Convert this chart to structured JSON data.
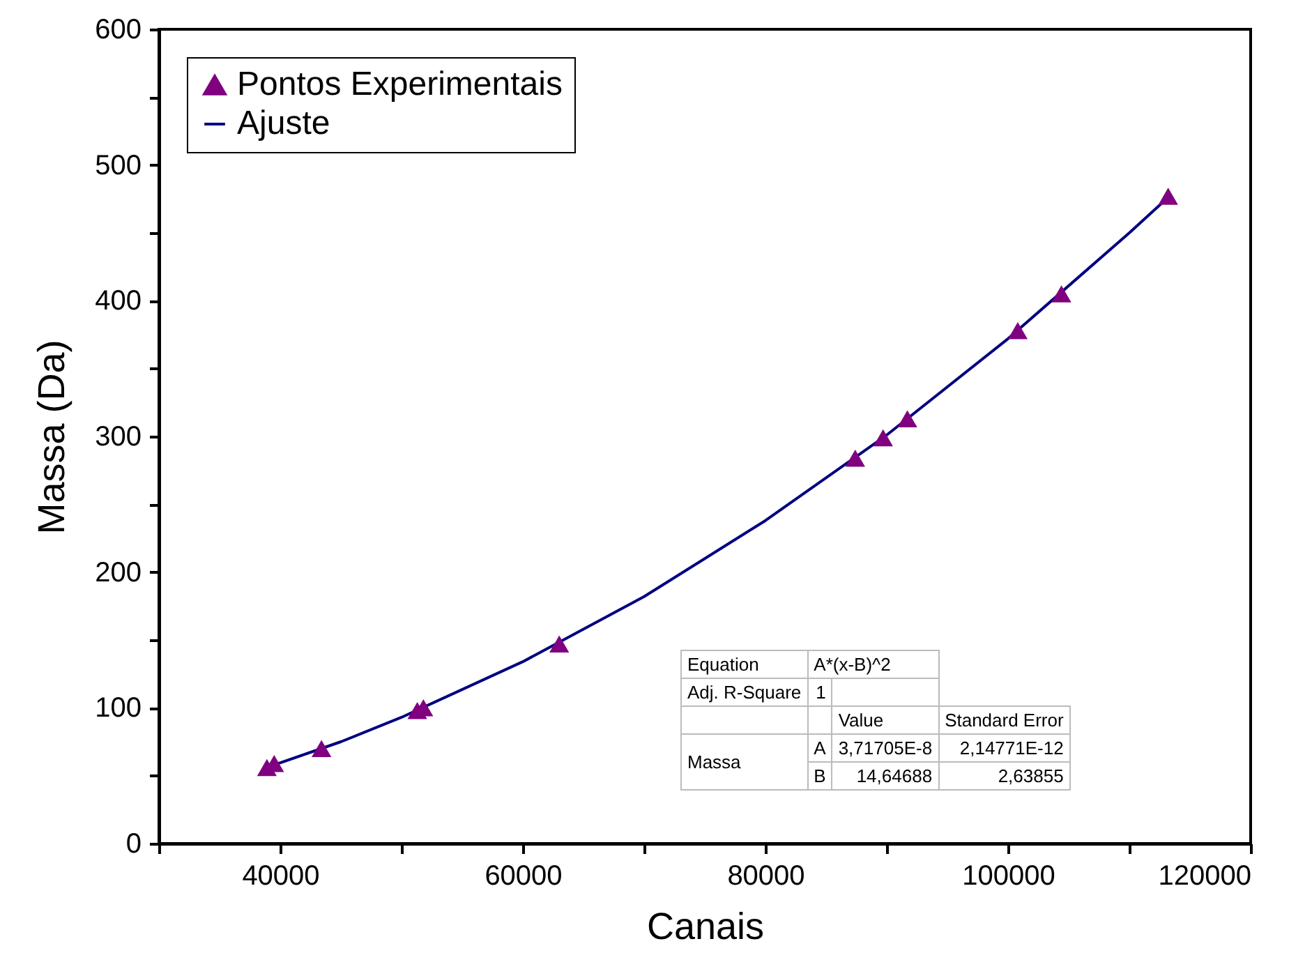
{
  "chart_data": {
    "type": "scatter",
    "xlabel": "Canais",
    "ylabel": "Massa (Da)",
    "xlim": [
      30000,
      120000
    ],
    "ylim": [
      0,
      600
    ],
    "xticks": [
      {
        "value": 30000,
        "label": null
      },
      40000,
      {
        "value": 50000,
        "label": null
      },
      60000,
      {
        "value": 70000,
        "label": null
      },
      80000,
      {
        "value": 90000,
        "label": null
      },
      100000,
      {
        "value": 110000,
        "label": null
      },
      120000
    ],
    "yticks": [
      0,
      {
        "value": 50,
        "label": null
      },
      100,
      {
        "value": 150,
        "label": null
      },
      200,
      {
        "value": 250,
        "label": null
      },
      300,
      {
        "value": 350,
        "label": null
      },
      400,
      {
        "value": 450,
        "label": null
      },
      500,
      {
        "value": 550,
        "label": null
      },
      600
    ],
    "grid": false,
    "legend": "top left",
    "marker": "triangle",
    "series": [
      {
        "name": "Pontos Experimentais",
        "color": "#800080",
        "x": [
          38900,
          39500,
          43400,
          51300,
          51800,
          63000,
          87400,
          89700,
          91700,
          100800,
          104400,
          113200
        ],
        "values": [
          56,
          59,
          70,
          98,
          100,
          147,
          284,
          299,
          313,
          378,
          405,
          477
        ]
      },
      {
        "name": "Ajuste",
        "type": "line",
        "color": "#000080",
        "marker": "none",
        "x": [
          38900,
          45000,
          50000,
          60000,
          70000,
          80000,
          90000,
          100000,
          110000,
          113300
        ],
        "values": [
          56,
          75,
          93,
          134,
          182,
          238,
          301,
          372,
          450,
          477
        ]
      }
    ],
    "annotations": [
      "Equation",
      "A*(x-B)^2",
      "Adj. R-Square",
      "1",
      "Value",
      "Standard Error",
      "Massa",
      "A",
      "3,71705E-8",
      "2,14771E-12",
      "B",
      "14,64688",
      "2,63855"
    ]
  }
}
